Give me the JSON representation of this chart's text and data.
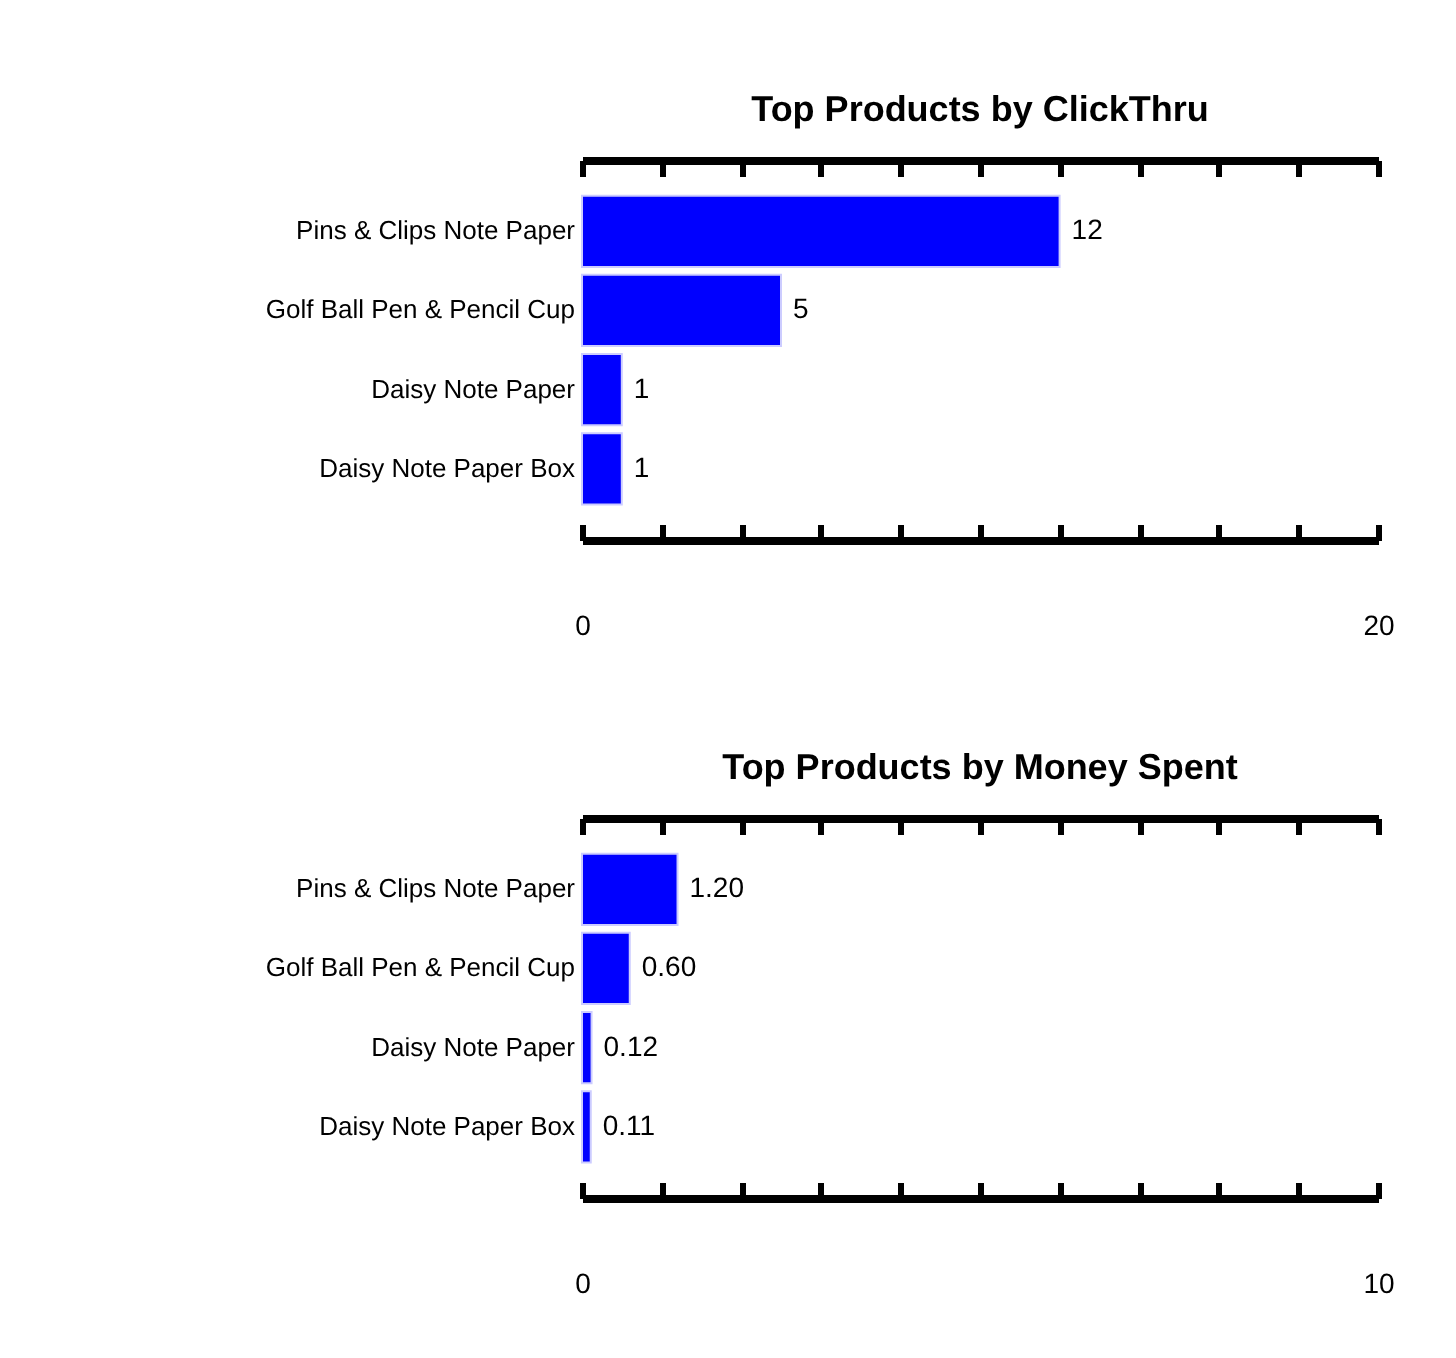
{
  "chart_data": [
    {
      "type": "bar",
      "orientation": "horizontal",
      "title": "Top Products by ClickThru",
      "categories": [
        "Pins & Clips Note Paper",
        "Golf Ball Pen & Pencil Cup",
        "Daisy Note Paper",
        "Daisy Note Paper Box"
      ],
      "values": [
        12,
        5,
        1,
        1
      ],
      "color": "#0000ff",
      "data_labels": true,
      "xlim": [
        0,
        20
      ],
      "xticks": [
        0,
        {
          "value": 2,
          "label": null
        },
        {
          "value": 4,
          "label": null
        },
        {
          "value": 6,
          "label": null
        },
        {
          "value": 8,
          "label": null
        },
        {
          "value": 10,
          "label": null
        },
        {
          "value": 12,
          "label": null
        },
        {
          "value": 14,
          "label": null
        },
        {
          "value": 16,
          "label": null
        },
        {
          "value": 18,
          "label": null
        },
        20
      ]
    },
    {
      "type": "bar",
      "orientation": "horizontal",
      "title": "Top Products by Money Spent",
      "categories": [
        "Pins & Clips Note Paper",
        "Golf Ball Pen & Pencil Cup",
        "Daisy Note Paper",
        "Daisy Note Paper Box"
      ],
      "values": [
        1.2,
        0.6,
        0.12,
        0.11
      ],
      "value_labels": [
        "1.20",
        "0.60",
        "0.12",
        "0.11"
      ],
      "color": "#0000ff",
      "xlim": [
        0,
        10
      ],
      "xticks": [
        0,
        {
          "value": 1,
          "label": null
        },
        {
          "value": 2,
          "label": null
        },
        {
          "value": 3,
          "label": null
        },
        {
          "value": 4,
          "label": null
        },
        {
          "value": 5,
          "label": null
        },
        {
          "value": 6,
          "label": null
        },
        {
          "value": 7,
          "label": null
        },
        {
          "value": 8,
          "label": null
        },
        {
          "value": 9,
          "label": null
        },
        10
      ]
    }
  ]
}
